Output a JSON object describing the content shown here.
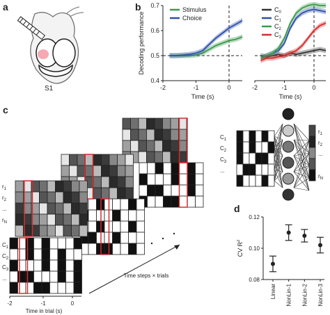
{
  "panel_letters": {
    "a": "a",
    "b": "b",
    "c": "c",
    "d": "d"
  },
  "panel_a": {
    "label": "S1"
  },
  "chart_data": [
    {
      "type": "line",
      "panel": "b-left",
      "ylabel": "Decoding performance",
      "xlabel": "Time (s)",
      "ylim": [
        0.4,
        0.7
      ],
      "yticks": [
        0.4,
        0.5,
        0.6,
        0.7
      ],
      "xlim": [
        -2,
        0.4
      ],
      "xticks": [
        -2,
        -1,
        0
      ],
      "chance": 0.5,
      "legend_placement": "top-left",
      "series": [
        {
          "name": "Stimulus",
          "color": "#3a9a4a",
          "x": [
            -1.8,
            -1.6,
            -1.4,
            -1.2,
            -1.0,
            -0.8,
            -0.6,
            -0.4,
            -0.2,
            0.0,
            0.2,
            0.4
          ],
          "y": [
            0.5,
            0.5,
            0.5,
            0.5,
            0.502,
            0.51,
            0.525,
            0.54,
            0.55,
            0.56,
            0.565,
            0.575
          ]
        },
        {
          "name": "Choice",
          "color": "#2d4fa8",
          "x": [
            -1.8,
            -1.6,
            -1.4,
            -1.2,
            -1.0,
            -0.8,
            -0.6,
            -0.4,
            -0.2,
            0.0,
            0.2,
            0.4
          ],
          "y": [
            0.5,
            0.5,
            0.502,
            0.505,
            0.51,
            0.52,
            0.545,
            0.57,
            0.59,
            0.61,
            0.625,
            0.64
          ]
        }
      ]
    },
    {
      "type": "line",
      "panel": "b-right",
      "xlabel": "Time (s)",
      "ylim": [
        0.4,
        0.7
      ],
      "xlim": [
        -2,
        0.4
      ],
      "xticks": [
        -2,
        -1,
        0
      ],
      "chance": 0.5,
      "legend_placement": "top-left",
      "series": [
        {
          "name": "C",
          "sub": "0",
          "color": "#333333",
          "x": [
            -1.8,
            -1.6,
            -1.4,
            -1.2,
            -1.0,
            -0.8,
            -0.6,
            -0.4,
            -0.2,
            0.0,
            0.2,
            0.4
          ],
          "y": [
            0.5,
            0.495,
            0.5,
            0.505,
            0.5,
            0.51,
            0.505,
            0.51,
            0.515,
            0.52,
            0.525,
            0.52
          ]
        },
        {
          "name": "C",
          "sub": "1",
          "color": "#2d4fa8",
          "x": [
            -1.8,
            -1.6,
            -1.4,
            -1.2,
            -1.0,
            -0.8,
            -0.6,
            -0.4,
            -0.2,
            0.0,
            0.2,
            0.4
          ],
          "y": [
            0.49,
            0.5,
            0.51,
            0.52,
            0.55,
            0.61,
            0.65,
            0.67,
            0.68,
            0.685,
            0.68,
            0.675
          ]
        },
        {
          "name": "C",
          "sub": "2",
          "color": "#3a9a4a",
          "x": [
            -1.8,
            -1.6,
            -1.4,
            -1.2,
            -1.0,
            -0.8,
            -0.6,
            -0.4,
            -0.2,
            0.0,
            0.2,
            0.4
          ],
          "y": [
            0.49,
            0.5,
            0.51,
            0.53,
            0.57,
            0.63,
            0.67,
            0.69,
            0.7,
            0.705,
            0.7,
            0.7
          ]
        },
        {
          "name": "C",
          "sub": "3",
          "color": "#d62b2b",
          "x": [
            -1.8,
            -1.6,
            -1.4,
            -1.2,
            -1.0,
            -0.8,
            -0.6,
            -0.4,
            -0.2,
            0.0,
            0.2,
            0.4
          ],
          "y": [
            0.48,
            0.49,
            0.49,
            0.495,
            0.5,
            0.51,
            0.52,
            0.54,
            0.57,
            0.6,
            0.62,
            0.63
          ]
        }
      ]
    },
    {
      "type": "scatter",
      "panel": "d",
      "ylabel": "CV R",
      "ylabel_sup": "2",
      "ylim": [
        0.08,
        0.12
      ],
      "yticks": [
        0.08,
        0.1,
        0.12
      ],
      "categories": [
        "Linear",
        "NonLin-1",
        "NonLin-2",
        "NonLin-3"
      ],
      "values": [
        0.09,
        0.11,
        0.108,
        0.102
      ],
      "err": [
        0.005,
        0.005,
        0.004,
        0.005
      ]
    }
  ],
  "panel_c": {
    "row_labels_top": [
      "r",
      "r",
      "...",
      "r"
    ],
    "row_subs_top": [
      "1",
      "2",
      "",
      "N"
    ],
    "row_labels_bottom": [
      "C",
      "C",
      "C",
      "..."
    ],
    "row_subs_bottom": [
      "1",
      "2",
      "3",
      ""
    ],
    "axis_time_trial": "Time in trial (s)",
    "axis_trials": "Time steps × trials",
    "xticks": [
      "-2",
      "-1",
      "0"
    ],
    "net_inputs": [
      "C",
      "C",
      "C",
      "..."
    ],
    "net_input_subs": [
      "1",
      "2",
      "3",
      ""
    ],
    "net_outputs": [
      "r",
      "r",
      "...",
      "r"
    ],
    "net_output_subs": [
      "1",
      "2",
      "",
      "N"
    ]
  }
}
